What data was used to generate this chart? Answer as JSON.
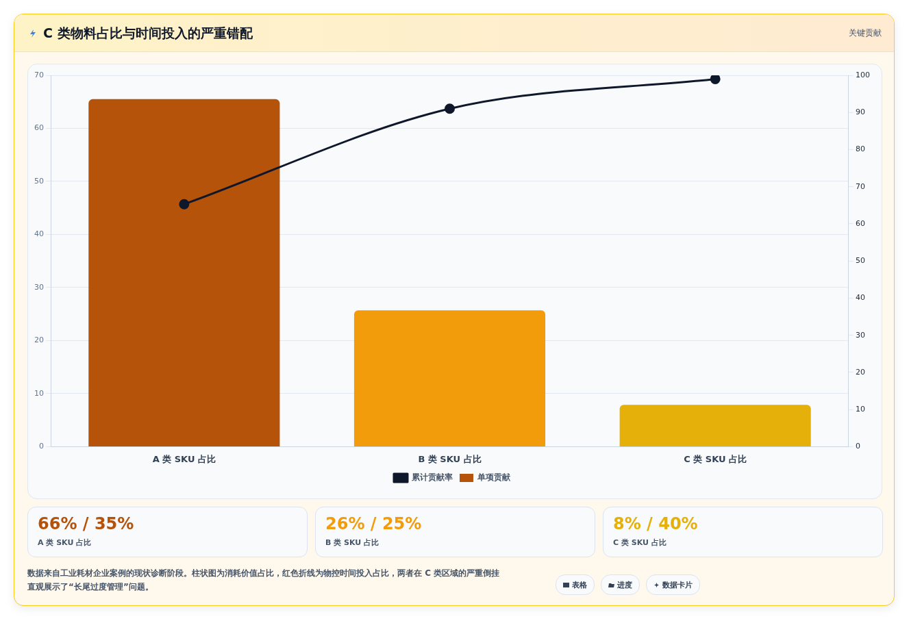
{
  "chart_data": {
    "type": "bar",
    "title": "C 类物料占比与时间投入的严重错配",
    "categories": [
      "A 类 SKU 占比",
      "B 类 SKU 占比",
      "C 类 SKU 占比"
    ],
    "series": [
      {
        "name": "累计贡献率",
        "type": "line",
        "axis": "y2",
        "color": "#0f172a",
        "values": [
          65.3,
          91,
          99
        ]
      },
      {
        "name": "单项贡献",
        "colors": [
          "#b45309",
          "#f39c0b",
          "#e6b00a"
        ],
        "values": [
          65.5,
          25.7,
          7.9
        ]
      }
    ],
    "ylim": [
      0,
      70
    ],
    "yticks": [
      0,
      10,
      20,
      30,
      40,
      50,
      60,
      70
    ],
    "y2lim": [
      0,
      100
    ],
    "y2ticks": [
      0,
      10,
      20,
      30,
      40,
      50,
      60,
      70,
      80,
      90,
      100
    ],
    "grid": "y",
    "legend": "bottom",
    "marker": "circle",
    "annotations": [
      "关键贡献",
      "66% / 35%",
      "26% / 25%",
      "8% / 40%",
      "A 类 SKU 占比",
      "B 类 SKU 占比",
      "C 类 SKU 占比",
      "数据来自工业耗材企业案例的现状诊断阶段。柱状图为消耗价值占比，红色折线为物控时间投入占比，两者在 C 类区域的严重倒挂直观展示了“长尾过度管理”问题。",
      "表格",
      "进度",
      "数据卡片"
    ]
  }
}
